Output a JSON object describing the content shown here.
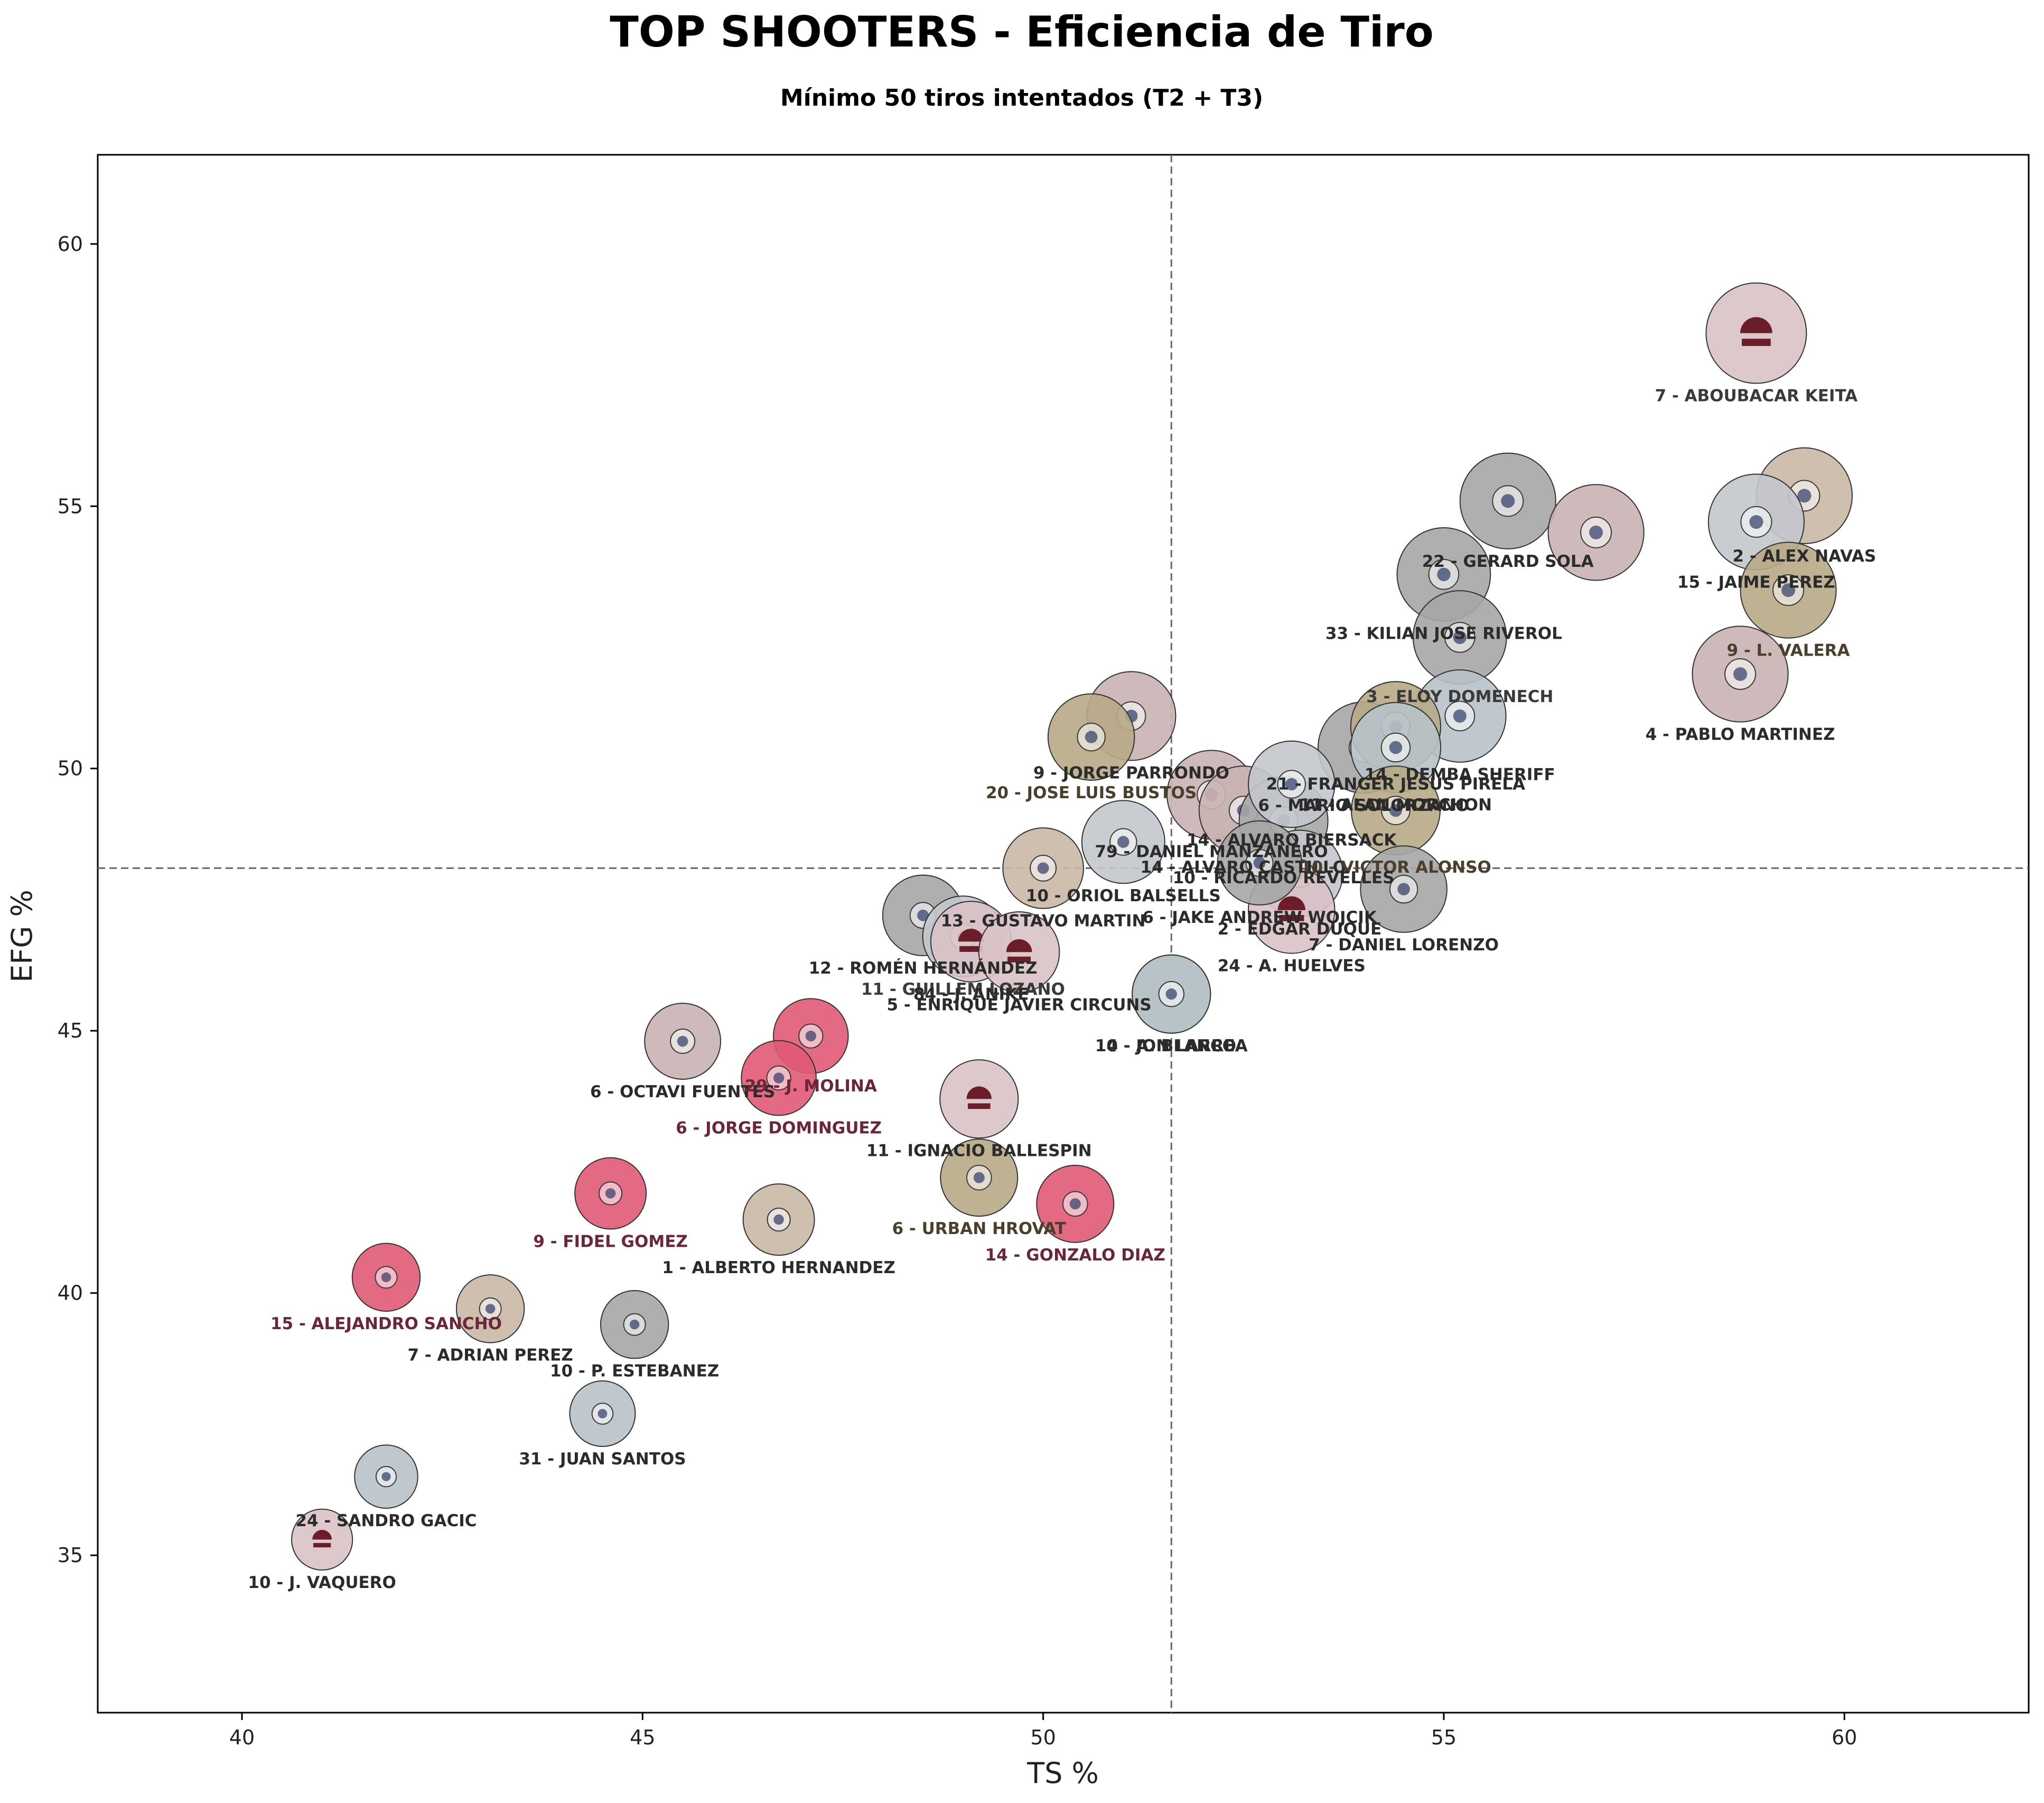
{
  "chart_data": {
    "type": "scatter",
    "title": "TOP SHOOTERS - Eficiencia de Tiro",
    "subtitle": "Mínimo 50 tiros intentados (T2 + T3)",
    "xlabel": "TS %",
    "ylabel": "EFG %",
    "xlim": [
      38.2,
      62.3
    ],
    "ylim": [
      32.0,
      61.7
    ],
    "x_ticks": [
      40,
      45,
      50,
      55,
      60
    ],
    "y_ticks": [
      35,
      40,
      45,
      50,
      55,
      60
    ],
    "reference_lines": {
      "x": 51.6,
      "y": 48.1
    },
    "grid": false,
    "points": [
      {
        "label": "7 - ABOUBACAR KEITA",
        "x": 58.9,
        "y": 58.3,
        "size": 1.0,
        "color": "#d9c3c6",
        "label_color": "#3a3a3a",
        "icon": "zbk-logo-icon"
      },
      {
        "label": "2 - ALEX NAVAS",
        "x": 59.5,
        "y": 55.2,
        "size": 0.92,
        "color": "#c9b8a6",
        "label_color": "#2b2b2b",
        "icon": "club-crest-icon"
      },
      {
        "label": "15 - JAIME PEREZ",
        "x": 58.9,
        "y": 54.7,
        "size": 0.92,
        "color": "#c3c6cc",
        "label_color": "#2b2b2b",
        "icon": "club-crest-icon"
      },
      {
        "label": "9 - L. VALERA",
        "x": 59.3,
        "y": 53.4,
        "size": 0.92,
        "color": "#b7aa86",
        "label_color": "#4a3f2a",
        "icon": "club-crest-icon"
      },
      {
        "label": "4 - PABLO MARTINEZ",
        "x": 58.7,
        "y": 51.8,
        "size": 0.92,
        "color": "#c9b2b3",
        "label_color": "#2b2b2b",
        "icon": "club-crest-icon"
      },
      {
        "label": "22 - GERARD SOLA",
        "x": 55.8,
        "y": 55.1,
        "size": 0.92,
        "color": "#a6a6a6",
        "label_color": "#2b2b2b",
        "icon": "club-crest-icon"
      },
      {
        "label": "",
        "x": 56.9,
        "y": 54.5,
        "size": 0.92,
        "color": "#c9b2b3",
        "label_color": "#2b2b2b",
        "icon": "club-crest-icon"
      },
      {
        "label": "33 - KILIAN JOSE RIVEROL",
        "x": 55.0,
        "y": 53.7,
        "size": 0.88,
        "color": "#a6a6a6",
        "label_color": "#2b2b2b",
        "icon": "club-crest-icon"
      },
      {
        "label": "3 - ELOY DOMENECH",
        "x": 55.2,
        "y": 52.5,
        "size": 0.88,
        "color": "#a6a6a6",
        "label_color": "#3a3a3a",
        "icon": "club-crest-icon"
      },
      {
        "label": "14 - DEMBA SHERIFF",
        "x": 55.2,
        "y": 51.0,
        "size": 0.86,
        "color": "#b7c2c8",
        "label_color": "#2b2b2b",
        "icon": "club-crest-icon"
      },
      {
        "label": "21 - FRANGER JESUS PIRELA",
        "x": 54.4,
        "y": 50.8,
        "size": 0.82,
        "color": "#b7aa86",
        "label_color": "#2b2b2b",
        "icon": "club-crest-icon"
      },
      {
        "label": "11 - ALAN MORCHON",
        "x": 54.4,
        "y": 50.4,
        "size": 0.82,
        "color": "#b7c2c8",
        "label_color": "#2b2b2b",
        "icon": "club-crest-icon"
      },
      {
        "label": "6 - MARIO SOLORZANO",
        "x": 54.0,
        "y": 50.4,
        "size": 0.84,
        "color": "#a6a6a6",
        "label_color": "#2b2b2b",
        "icon": "club-crest-icon"
      },
      {
        "label": "9 - JORGE PARRONDO",
        "x": 51.1,
        "y": 51.0,
        "size": 0.8,
        "color": "#c9b2b3",
        "label_color": "#2b2b2b",
        "icon": "club-crest-icon"
      },
      {
        "label": "20 - JOSE LUIS BUSTOS",
        "x": 50.6,
        "y": 50.6,
        "size": 0.76,
        "color": "#b7aa86",
        "label_color": "#4a3f2a",
        "icon": "club-crest-icon"
      },
      {
        "label": "14 - ALVARO BIERSACK",
        "x": 53.1,
        "y": 49.7,
        "size": 0.76,
        "color": "#c3c6cc",
        "label_color": "#2b2b2b",
        "icon": "club-crest-icon"
      },
      {
        "label": "79 - DANIEL MANZANERO",
        "x": 52.1,
        "y": 49.5,
        "size": 0.8,
        "color": "#c9b2b3",
        "label_color": "#2b2b2b",
        "icon": "club-crest-icon"
      },
      {
        "label": "14 - ALVARO CASTILLO",
        "x": 52.5,
        "y": 49.2,
        "size": 0.8,
        "color": "#c9b2b3",
        "label_color": "#2b2b2b",
        "icon": "club-crest-icon"
      },
      {
        "label": "10 - VICTOR ALONSO",
        "x": 54.4,
        "y": 49.2,
        "size": 0.8,
        "color": "#b7aa86",
        "label_color": "#4a3f2a",
        "icon": "club-crest-icon"
      },
      {
        "label": "10 - ORIOL BALSELLS",
        "x": 51.0,
        "y": 48.6,
        "size": 0.7,
        "color": "#c3c6cc",
        "label_color": "#2b2b2b",
        "icon": "club-crest-icon"
      },
      {
        "label": "10 - RICARDO REVELLES",
        "x": 53.0,
        "y": 49.0,
        "size": 0.8,
        "color": "#a6a6a6",
        "label_color": "#2b2b2b",
        "icon": "club-crest-icon"
      },
      {
        "label": "13 - GUSTAVO MARTIN",
        "x": 50.0,
        "y": 48.1,
        "size": 0.66,
        "color": "#c9b8a6",
        "label_color": "#2b2b2b",
        "icon": "club-crest-icon"
      },
      {
        "label": "6 - JAKE ANDREW WOJCIK",
        "x": 52.7,
        "y": 48.2,
        "size": 0.72,
        "color": "#a6a6a6",
        "label_color": "#2b2b2b",
        "icon": "club-crest-icon"
      },
      {
        "label": "2 - EDGAR DUQUE",
        "x": 53.2,
        "y": 48.0,
        "size": 0.76,
        "color": "#c3c6cc",
        "label_color": "#2b2b2b",
        "icon": "club-crest-icon"
      },
      {
        "label": "7 - DANIEL LORENZO",
        "x": 54.5,
        "y": 47.7,
        "size": 0.76,
        "color": "#a6a6a6",
        "label_color": "#2b2b2b",
        "icon": "club-crest-icon"
      },
      {
        "label": "24 - A. HUELVES",
        "x": 53.1,
        "y": 47.3,
        "size": 0.76,
        "color": "#d9c3c6",
        "label_color": "#2b2b2b",
        "icon": "zbk-logo-icon"
      },
      {
        "label": "12 - ROMÉN HERNÁNDEZ",
        "x": 48.5,
        "y": 47.2,
        "size": 0.66,
        "color": "#a6a6a6",
        "label_color": "#2b2b2b",
        "icon": "club-crest-icon"
      },
      {
        "label": "11 - GUILLEM LOZANO",
        "x": 49.0,
        "y": 46.8,
        "size": 0.66,
        "color": "#c3c6cc",
        "label_color": "#3a3a3a",
        "icon": "club-crest-icon"
      },
      {
        "label": "84 - J. ANIKE",
        "x": 49.1,
        "y": 46.7,
        "size": 0.66,
        "color": "#d9c3c6",
        "label_color": "#2b2b2b",
        "icon": "zbk-logo-icon"
      },
      {
        "label": "5 - ENRIQUE JAVIER CIRCUNS",
        "x": 49.7,
        "y": 46.5,
        "size": 0.66,
        "color": "#d9c3c6",
        "label_color": "#2b2b2b",
        "icon": "zbk-logo-icon"
      },
      {
        "label": "4 - A. BLANCO",
        "x": 51.6,
        "y": 45.7,
        "size": 0.62,
        "color": "#b7c2c8",
        "label_color": "#2b2b2b",
        "icon": "club-crest-icon"
      },
      {
        "label": "10 - JON LARREA",
        "x": 51.6,
        "y": 45.7,
        "size": 0.62,
        "color": "#b7c2c8",
        "label_color": "#2b2b2b",
        "icon": "club-crest-icon"
      },
      {
        "label": "6 - OCTAVI FUENTES",
        "x": 45.5,
        "y": 44.8,
        "size": 0.58,
        "color": "#c9b2b3",
        "label_color": "#2b2b2b",
        "icon": "club-crest-icon"
      },
      {
        "label": "29 - J. MOLINA",
        "x": 47.1,
        "y": 44.9,
        "size": 0.56,
        "color": "#e05a74",
        "label_color": "#6b2737",
        "icon": "club-crest-icon"
      },
      {
        "label": "6 - JORGE DOMINGUEZ",
        "x": 46.7,
        "y": 44.1,
        "size": 0.56,
        "color": "#e05a74",
        "label_color": "#6b2737",
        "icon": "club-crest-icon"
      },
      {
        "label": "11 - IGNACIO BALLESPIN",
        "x": 49.2,
        "y": 43.7,
        "size": 0.62,
        "color": "#d9c3c6",
        "label_color": "#2b2b2b",
        "icon": "zbk-logo-icon"
      },
      {
        "label": "6 - URBAN HROVAT",
        "x": 49.2,
        "y": 42.2,
        "size": 0.6,
        "color": "#b7aa86",
        "label_color": "#4a3f2a",
        "icon": "club-crest-icon"
      },
      {
        "label": "14 - GONZALO DIAZ",
        "x": 50.4,
        "y": 41.7,
        "size": 0.6,
        "color": "#e05a74",
        "label_color": "#6b2737",
        "icon": "club-crest-icon"
      },
      {
        "label": "1 - ALBERTO HERNANDEZ",
        "x": 46.7,
        "y": 41.4,
        "size": 0.5,
        "color": "#c9b8a6",
        "label_color": "#2b2b2b",
        "icon": "club-crest-icon"
      },
      {
        "label": "9 - FIDEL GOMEZ",
        "x": 44.6,
        "y": 41.9,
        "size": 0.5,
        "color": "#e05a74",
        "label_color": "#6b2737",
        "icon": "club-crest-icon"
      },
      {
        "label": "15 - ALEJANDRO SANCHO",
        "x": 41.8,
        "y": 40.3,
        "size": 0.44,
        "color": "#e05a74",
        "label_color": "#6b2737",
        "icon": "club-crest-icon"
      },
      {
        "label": "7 - ADRIAN PEREZ",
        "x": 43.1,
        "y": 39.7,
        "size": 0.44,
        "color": "#c9b8a6",
        "label_color": "#2b2b2b",
        "icon": "club-crest-icon"
      },
      {
        "label": "10 - P. ESTEBANEZ",
        "x": 44.9,
        "y": 39.4,
        "size": 0.44,
        "color": "#a6a6a6",
        "label_color": "#2b2b2b",
        "icon": "club-crest-icon"
      },
      {
        "label": "31 - JUAN SANTOS",
        "x": 44.5,
        "y": 37.7,
        "size": 0.4,
        "color": "#b7c2c8",
        "label_color": "#2b2b2b",
        "icon": "club-crest-icon"
      },
      {
        "label": "24 - SANDRO GACIC",
        "x": 41.8,
        "y": 36.5,
        "size": 0.36,
        "color": "#b7c2c8",
        "label_color": "#2b2b2b",
        "icon": "club-crest-icon"
      },
      {
        "label": "10 - J. VAQUERO",
        "x": 41.0,
        "y": 35.3,
        "size": 0.32,
        "color": "#d9c3c6",
        "label_color": "#2b2b2b",
        "icon": "zbk-logo-icon"
      }
    ]
  }
}
